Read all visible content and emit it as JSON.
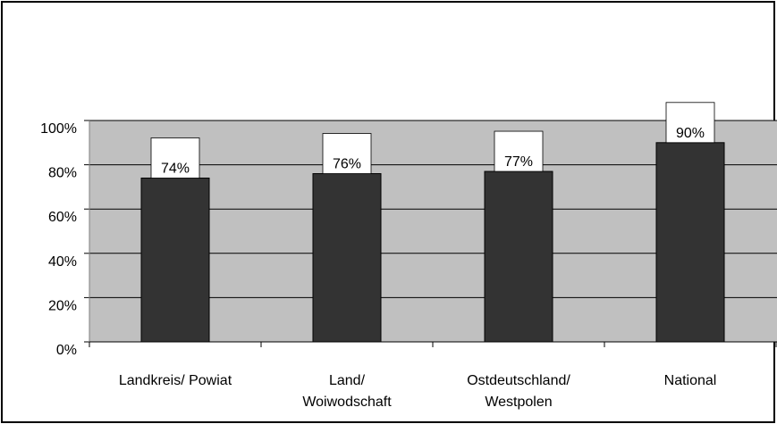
{
  "chart_data": {
    "type": "bar",
    "categories": [
      "Landkreis/ Powiat",
      "Land/\nWoiwodschaft",
      "Ostdeutschland/\nWestpolen",
      "National"
    ],
    "values": [
      74,
      76,
      77,
      90
    ],
    "value_labels": [
      "74%",
      "76%",
      "77%",
      "90%"
    ],
    "color": "#333333",
    "ylim": [
      0,
      100
    ],
    "yticks": [
      {
        "value": 0,
        "label": "0%"
      },
      {
        "value": 20,
        "label": "20%"
      },
      {
        "value": 40,
        "label": "40%"
      },
      {
        "value": 60,
        "label": "60%"
      },
      {
        "value": 80,
        "label": "80%"
      },
      {
        "value": 100,
        "label": "100%"
      }
    ],
    "grid": true
  }
}
